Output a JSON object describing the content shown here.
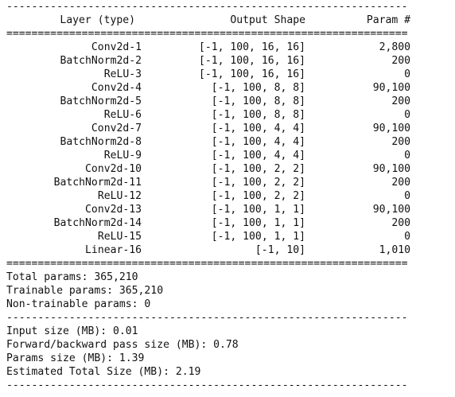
{
  "header": {
    "layer": "Layer (type)",
    "shape": "Output Shape",
    "param": "Param #"
  },
  "rules": {
    "dash": "----------------------------------------------------------------",
    "equal": "================================================================"
  },
  "layers": [
    {
      "name": "Conv2d-1",
      "shape": "[-1, 100, 16, 16]",
      "params": "2,800"
    },
    {
      "name": "BatchNorm2d-2",
      "shape": "[-1, 100, 16, 16]",
      "params": "200"
    },
    {
      "name": "ReLU-3",
      "shape": "[-1, 100, 16, 16]",
      "params": "0"
    },
    {
      "name": "Conv2d-4",
      "shape": "[-1, 100, 8, 8]",
      "params": "90,100"
    },
    {
      "name": "BatchNorm2d-5",
      "shape": "[-1, 100, 8, 8]",
      "params": "200"
    },
    {
      "name": "ReLU-6",
      "shape": "[-1, 100, 8, 8]",
      "params": "0"
    },
    {
      "name": "Conv2d-7",
      "shape": "[-1, 100, 4, 4]",
      "params": "90,100"
    },
    {
      "name": "BatchNorm2d-8",
      "shape": "[-1, 100, 4, 4]",
      "params": "200"
    },
    {
      "name": "ReLU-9",
      "shape": "[-1, 100, 4, 4]",
      "params": "0"
    },
    {
      "name": "Conv2d-10",
      "shape": "[-1, 100, 2, 2]",
      "params": "90,100"
    },
    {
      "name": "BatchNorm2d-11",
      "shape": "[-1, 100, 2, 2]",
      "params": "200"
    },
    {
      "name": "ReLU-12",
      "shape": "[-1, 100, 2, 2]",
      "params": "0"
    },
    {
      "name": "Conv2d-13",
      "shape": "[-1, 100, 1, 1]",
      "params": "90,100"
    },
    {
      "name": "BatchNorm2d-14",
      "shape": "[-1, 100, 1, 1]",
      "params": "200"
    },
    {
      "name": "ReLU-15",
      "shape": "[-1, 100, 1, 1]",
      "params": "0"
    },
    {
      "name": "Linear-16",
      "shape": "[-1, 10]",
      "params": "1,010"
    }
  ],
  "params_summary": {
    "total": "Total params: 365,210",
    "trainable": "Trainable params: 365,210",
    "non_trainable": "Non-trainable params: 0"
  },
  "size_summary": {
    "input": "Input size (MB): 0.01",
    "forward_backward": "Forward/backward pass size (MB): 0.78",
    "params": "Params size (MB): 1.39",
    "total": "Estimated Total Size (MB): 2.19"
  }
}
